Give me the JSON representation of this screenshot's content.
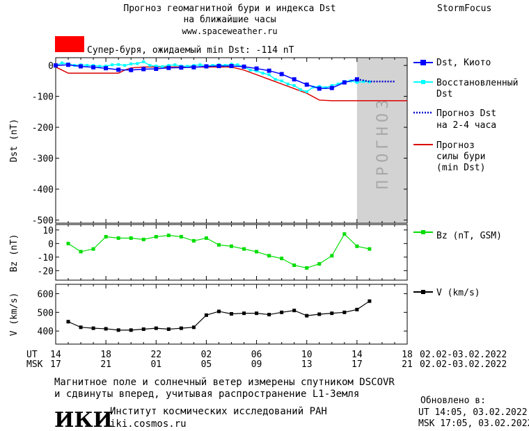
{
  "header": {
    "title_line1": "Прогноз геомагнитной бури и индекса Dst",
    "title_line2": "на ближайшие часы",
    "url": "www.spaceweather.ru",
    "brand": "StormFocus",
    "storm_label": "Супер-буря, ожидаемый min Dst: -114 nT"
  },
  "legend": {
    "dst_kyoto": "Dst, Киото",
    "dst_restored_1": "Восстановленный",
    "dst_restored_2": "Dst",
    "dst_forecast_1": "Прогноз Dst",
    "dst_forecast_2": "на 2-4 часа",
    "storm_forecast_1": "Прогноз",
    "storm_forecast_2": "силы бури",
    "storm_forecast_3": "(min Dst)",
    "bz": "Bz (nT, GSM)",
    "v": "V (km/s)"
  },
  "forecast_band_text": "ПРОГНОЗ",
  "time_axis": {
    "ut_label": "UT",
    "msk_label": "MSK",
    "ut_ticks": [
      "14",
      "18",
      "22",
      "02",
      "06",
      "10",
      "14",
      "18"
    ],
    "msk_ticks": [
      "17",
      "21",
      "01",
      "05",
      "09",
      "13",
      "17",
      "21"
    ],
    "ut_range": "02.02-03.02.2022",
    "msk_range": "02.02-03.02.2022"
  },
  "footer": {
    "note_line1": "Магнитное поле и солнечный ветер измерены спутником DSCOVR",
    "note_line2": "и сдвинуты вперед, учитывая распространение L1-Земля",
    "logo_text": "ИКИ",
    "institute": "Институт космических исследований РАН",
    "institute_url": "iki.cosmos.ru",
    "updated_label": "Обновлено в:",
    "updated_ut": "UT  14:05, 03.02.2022",
    "updated_msk": "MSK 17:05, 03.02.2022"
  },
  "colors": {
    "dst_kyoto": "#0000ff",
    "dst_restored": "#00ffff",
    "dst_forecast": "#0000cc",
    "storm_forecast": "#dd0000",
    "bz": "#00dd00",
    "v": "#000000",
    "forecast_band": "#d3d3d3",
    "storm_box": "#ff0000"
  },
  "chart_data": [
    {
      "type": "line",
      "ylabel": "Dst (nT)",
      "ylim": [
        -510,
        25
      ],
      "yticks": [
        0,
        -100,
        -200,
        -300,
        -400,
        -500
      ],
      "ytick_labels": [
        "0",
        "-100",
        "-200",
        "-300",
        "-400",
        "-500"
      ],
      "xlim_hours_from_14UT": [
        0,
        28
      ],
      "forecast_band_hours": [
        24,
        28
      ],
      "series": [
        {
          "name": "Dst, Киото",
          "x": [
            0,
            1,
            2,
            3,
            4,
            5,
            6,
            7,
            8,
            9,
            10,
            11,
            12,
            13,
            14,
            15,
            16,
            17,
            18,
            19,
            20,
            21,
            22,
            23,
            24
          ],
          "y": [
            0,
            2,
            -3,
            -6,
            -9,
            -14,
            -15,
            -12,
            -11,
            -8,
            -7,
            -6,
            -3,
            -2,
            -2,
            -4,
            -10,
            -17,
            -28,
            -45,
            -62,
            -75,
            -73,
            -55,
            -45
          ]
        },
        {
          "name": "Восстановленный Dst",
          "x": [
            0,
            0.5,
            1,
            1.5,
            2,
            2.5,
            3,
            3.5,
            4,
            4.5,
            5,
            5.5,
            6,
            6.5,
            7,
            7.5,
            8,
            8.5,
            9,
            9.5,
            10,
            10.5,
            11,
            11.5,
            12,
            12.5,
            13,
            13.5,
            14,
            14.5,
            15,
            15.5,
            16,
            16.5,
            17,
            17.5,
            18,
            18.5,
            19,
            19.5,
            20,
            20.5,
            21,
            21.5,
            22,
            22.5,
            23,
            23.5,
            24,
            24.5,
            25
          ],
          "y": [
            0,
            8,
            5,
            0,
            2,
            0,
            0,
            -3,
            -2,
            2,
            3,
            0,
            5,
            6,
            12,
            0,
            -2,
            -4,
            0,
            2,
            -2,
            -3,
            0,
            2,
            -1,
            0,
            2,
            0,
            4,
            2,
            -5,
            -15,
            -18,
            -25,
            -30,
            -45,
            -50,
            -60,
            -65,
            -78,
            -85,
            -70,
            -68,
            -72,
            -65,
            -60,
            -52,
            -50,
            -55,
            -52,
            -53
          ]
        },
        {
          "name": "Прогноз Dst на 2-4 часа",
          "x": [
            24,
            25,
            26,
            27
          ],
          "y": [
            -45,
            -52,
            -52,
            -52
          ]
        },
        {
          "name": "Прогноз силы бури (min Dst)",
          "x": [
            0,
            0.5,
            1,
            2,
            3,
            4,
            5,
            5.5,
            6,
            7,
            8,
            9,
            10,
            11,
            12,
            13,
            14,
            15,
            16,
            17,
            18,
            19,
            20,
            21,
            22,
            23,
            24,
            25,
            26,
            27,
            28
          ],
          "y": [
            -5,
            -15,
            -25,
            -25,
            -25,
            -25,
            -25,
            -15,
            -8,
            -5,
            -5,
            -5,
            -5,
            -5,
            -5,
            -5,
            -5,
            -15,
            -30,
            -45,
            -60,
            -75,
            -90,
            -112,
            -114,
            -114,
            -114,
            -114,
            -114,
            -114,
            -114
          ]
        }
      ]
    },
    {
      "type": "line",
      "ylabel": "Bz (nT)",
      "ylim": [
        -27,
        14
      ],
      "yticks": [
        10,
        0,
        -10,
        -20
      ],
      "ytick_labels": [
        "10",
        "0",
        "-10",
        "-20"
      ],
      "series": [
        {
          "name": "Bz (nT, GSM)",
          "x": [
            1,
            2,
            3,
            4,
            5,
            6,
            7,
            8,
            9,
            10,
            11,
            12,
            13,
            14,
            15,
            16,
            17,
            18,
            19,
            20,
            21,
            22,
            23,
            24,
            25
          ],
          "y": [
            0,
            -6,
            -4,
            5,
            4,
            4,
            3,
            5,
            6,
            5,
            2,
            4,
            -1,
            -2,
            -4,
            -6,
            -9,
            -11,
            -16,
            -18,
            -15,
            -9,
            7,
            -2,
            -4
          ]
        }
      ]
    },
    {
      "type": "line",
      "ylabel": "V (km/s)",
      "ylim": [
        330,
        650
      ],
      "yticks": [
        600,
        500,
        400
      ],
      "ytick_labels": [
        "600",
        "500",
        "400"
      ],
      "series": [
        {
          "name": "V (km/s)",
          "x": [
            1,
            2,
            3,
            4,
            5,
            6,
            7,
            8,
            9,
            10,
            11,
            12,
            13,
            14,
            15,
            16,
            17,
            18,
            19,
            20,
            21,
            22,
            23,
            24,
            25
          ],
          "y": [
            450,
            420,
            415,
            412,
            405,
            405,
            410,
            415,
            410,
            415,
            420,
            485,
            505,
            492,
            495,
            495,
            488,
            500,
            510,
            482,
            490,
            495,
            500,
            515,
            560
          ]
        }
      ]
    }
  ]
}
